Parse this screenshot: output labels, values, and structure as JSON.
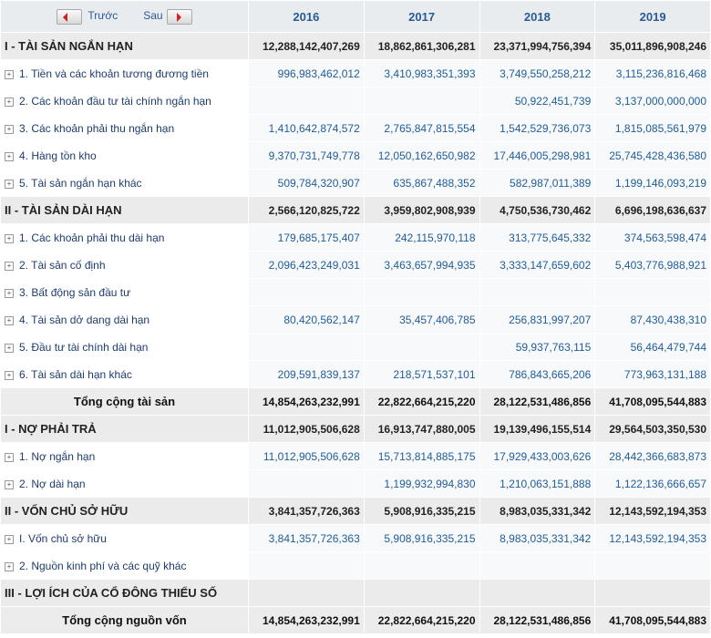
{
  "header": {
    "prev": "Trước",
    "next": "Sau",
    "years": [
      "2016",
      "2017",
      "2018",
      "2019"
    ]
  },
  "groups": [
    {
      "sections": [
        {
          "title": "I - TÀI SẢN NGẮN HẠN",
          "values": [
            "12,288,142,407,269",
            "18,862,861,306,281",
            "23,371,994,756,394",
            "35,011,896,908,246"
          ],
          "items": [
            {
              "label": "1. Tiền và các khoản tương đương tiền",
              "values": [
                "996,983,462,012",
                "3,410,983,351,393",
                "3,749,550,258,212",
                "3,115,236,816,468"
              ]
            },
            {
              "label": "2. Các khoản đầu tư tài chính ngắn hạn",
              "values": [
                null,
                null,
                "50,922,451,739",
                "3,137,000,000,000"
              ]
            },
            {
              "label": "3. Các khoản phải thu ngắn hạn",
              "values": [
                "1,410,642,874,572",
                "2,765,847,815,554",
                "1,542,529,736,073",
                "1,815,085,561,979"
              ]
            },
            {
              "label": "4. Hàng tồn kho",
              "values": [
                "9,370,731,749,778",
                "12,050,162,650,982",
                "17,446,005,298,981",
                "25,745,428,436,580"
              ]
            },
            {
              "label": "5. Tài sản ngắn hạn khác",
              "values": [
                "509,784,320,907",
                "635,867,488,352",
                "582,987,011,389",
                "1,199,146,093,219"
              ]
            }
          ]
        },
        {
          "title": "II - TÀI SẢN DÀI HẠN",
          "values": [
            "2,566,120,825,722",
            "3,959,802,908,939",
            "4,750,536,730,462",
            "6,696,198,636,637"
          ],
          "items": [
            {
              "label": "1. Các khoản phải thu dài hạn",
              "values": [
                "179,685,175,407",
                "242,115,970,118",
                "313,775,645,332",
                "374,563,598,474"
              ]
            },
            {
              "label": "2. Tài sản cố định",
              "values": [
                "2,096,423,249,031",
                "3,463,657,994,935",
                "3,333,147,659,602",
                "5,403,776,988,921"
              ]
            },
            {
              "label": "3. Bất động sản đầu tư",
              "values": [
                null,
                null,
                null,
                null
              ]
            },
            {
              "label": "4. Tài sản dở dang dài hạn",
              "values": [
                "80,420,562,147",
                "35,457,406,785",
                "256,831,997,207",
                "87,430,438,310"
              ]
            },
            {
              "label": "5. Đầu tư tài chính dài hạn",
              "values": [
                null,
                null,
                "59,937,763,115",
                "56,464,479,744"
              ]
            },
            {
              "label": "6. Tài sản dài hạn khác",
              "values": [
                "209,591,839,137",
                "218,571,537,101",
                "786,843,665,206",
                "773,963,131,188"
              ]
            }
          ]
        }
      ],
      "total": {
        "label": "Tổng cộng tài sản",
        "values": [
          "14,854,263,232,991",
          "22,822,664,215,220",
          "28,122,531,486,856",
          "41,708,095,544,883"
        ]
      }
    },
    {
      "sections": [
        {
          "title": "I - NỢ PHẢI TRẢ",
          "values": [
            "11,012,905,506,628",
            "16,913,747,880,005",
            "19,139,496,155,514",
            "29,564,503,350,530"
          ],
          "items": [
            {
              "label": "1. Nợ ngắn hạn",
              "values": [
                "11,012,905,506,628",
                "15,713,814,885,175",
                "17,929,433,003,626",
                "28,442,366,683,873"
              ]
            },
            {
              "label": "2. Nợ dài hạn",
              "values": [
                null,
                "1,199,932,994,830",
                "1,210,063,151,888",
                "1,122,136,666,657"
              ]
            }
          ]
        },
        {
          "title": "II - VỐN CHỦ SỞ HỮU",
          "values": [
            "3,841,357,726,363",
            "5,908,916,335,215",
            "8,983,035,331,342",
            "12,143,592,194,353"
          ],
          "items": [
            {
              "label": "I. Vốn chủ sở hữu",
              "values": [
                "3,841,357,726,363",
                "5,908,916,335,215",
                "8,983,035,331,342",
                "12,143,592,194,353"
              ]
            },
            {
              "label": "2. Nguồn kinh phí và các quỹ khác",
              "values": [
                null,
                null,
                null,
                null
              ]
            }
          ]
        },
        {
          "title": "III - LỢI ÍCH CỦA CỔ ĐÔNG THIỂU SỐ",
          "values": [
            null,
            null,
            null,
            null
          ],
          "items": []
        }
      ],
      "total": {
        "label": "Tổng cộng nguồn vốn",
        "values": [
          "14,854,263,232,991",
          "22,822,664,215,220",
          "28,122,531,486,856",
          "41,708,095,544,883"
        ]
      }
    }
  ]
}
